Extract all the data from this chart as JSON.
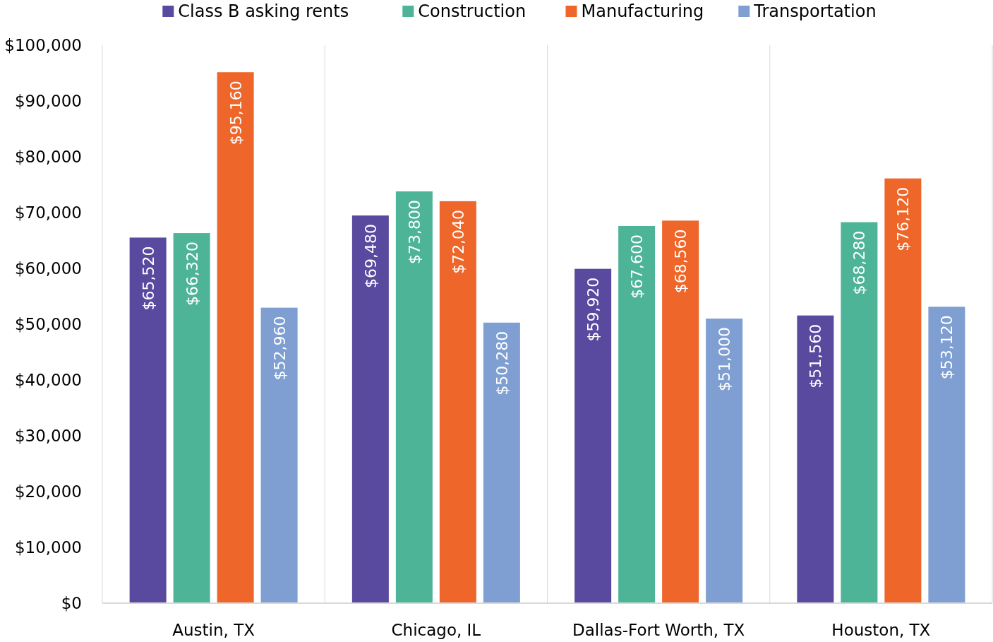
{
  "chart_data": {
    "type": "bar",
    "categories": [
      "Austin, TX",
      "Chicago, IL",
      "Dallas-Fort Worth, TX",
      "Houston, TX"
    ],
    "series": [
      {
        "name": "Class B asking rents",
        "color": "#5a4a9f",
        "values": [
          65520,
          69480,
          59920,
          51560
        ],
        "value_labels": [
          "$65,520",
          "$69,480",
          "$59,920",
          "$51,560"
        ]
      },
      {
        "name": "Construction",
        "color": "#4db497",
        "values": [
          66320,
          73800,
          67600,
          68280
        ],
        "value_labels": [
          "$66,320",
          "$73,800",
          "$67,600",
          "$68,280"
        ]
      },
      {
        "name": "Manufacturing",
        "color": "#ee6629",
        "values": [
          95160,
          72040,
          68560,
          76120
        ],
        "value_labels": [
          "$95,160",
          "$72,040",
          "$68,560",
          "$76,120"
        ]
      },
      {
        "name": "Transportation",
        "color": "#7f9fd2",
        "values": [
          52960,
          50280,
          51000,
          53120
        ],
        "value_labels": [
          "$52,960",
          "$50,280",
          "$51,000",
          "$53,120"
        ]
      }
    ],
    "ylim": [
      0,
      100000
    ],
    "yticks": [
      {
        "value": 0,
        "label": "$0"
      },
      {
        "value": 10000,
        "label": "$10,000"
      },
      {
        "value": 20000,
        "label": "$20,000"
      },
      {
        "value": 30000,
        "label": "$30,000"
      },
      {
        "value": 40000,
        "label": "$40,000"
      },
      {
        "value": 50000,
        "label": "$50,000"
      },
      {
        "value": 60000,
        "label": "$60,000"
      },
      {
        "value": 70000,
        "label": "$70,000"
      },
      {
        "value": 80000,
        "label": "$80,000"
      },
      {
        "value": 90000,
        "label": "$90,000"
      },
      {
        "value": 100000,
        "label": "$100,000"
      }
    ],
    "grid": "x",
    "legend": "top"
  }
}
